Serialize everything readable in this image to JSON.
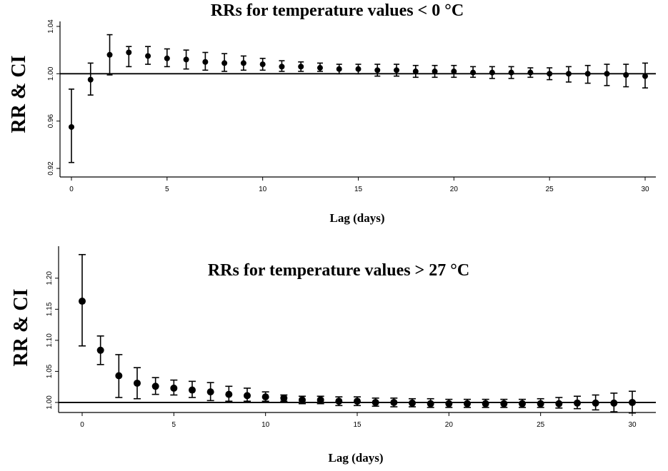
{
  "chart_data": [
    {
      "type": "scatter",
      "title": "RRs for temperature values < 0 °C",
      "xlabel": "Lag (days)",
      "ylabel": "RR & CI",
      "xlim": [
        0,
        30
      ],
      "ylim": [
        0.92,
        1.04
      ],
      "xticks": [
        0,
        5,
        10,
        15,
        20,
        25,
        30
      ],
      "xtick_labels": [
        "0",
        "5",
        "10",
        "15",
        "20",
        "25",
        "30"
      ],
      "yticks": [
        0.92,
        0.96,
        1.0,
        1.04
      ],
      "ytick_labels": [
        "0.92",
        "0.96",
        "1.00",
        "1.04"
      ],
      "reference_line": 1.0,
      "grid": false,
      "x": [
        0,
        1,
        2,
        3,
        4,
        5,
        6,
        7,
        8,
        9,
        10,
        11,
        12,
        13,
        14,
        15,
        16,
        17,
        18,
        19,
        20,
        21,
        22,
        23,
        24,
        25,
        26,
        27,
        28,
        29,
        30
      ],
      "y": [
        0.955,
        0.995,
        1.016,
        1.018,
        1.015,
        1.013,
        1.012,
        1.01,
        1.009,
        1.009,
        1.008,
        1.006,
        1.006,
        1.005,
        1.004,
        1.004,
        1.003,
        1.003,
        1.002,
        1.002,
        1.002,
        1.001,
        1.001,
        1.001,
        1.001,
        1.0,
        1.0,
        1.0,
        1.0,
        0.999,
        0.998
      ],
      "ci_low": [
        0.925,
        0.982,
        0.999,
        1.006,
        1.008,
        1.006,
        1.004,
        1.003,
        1.002,
        1.003,
        1.003,
        1.002,
        1.002,
        1.002,
        1.0,
        1.0,
        0.998,
        0.998,
        0.997,
        0.997,
        0.997,
        0.997,
        0.996,
        0.996,
        0.997,
        0.995,
        0.993,
        0.992,
        0.99,
        0.989,
        0.988
      ],
      "ci_high": [
        0.987,
        1.009,
        1.033,
        1.023,
        1.023,
        1.021,
        1.02,
        1.018,
        1.017,
        1.015,
        1.013,
        1.011,
        1.01,
        1.009,
        1.008,
        1.008,
        1.008,
        1.008,
        1.007,
        1.007,
        1.007,
        1.006,
        1.006,
        1.006,
        1.005,
        1.005,
        1.006,
        1.007,
        1.008,
        1.008,
        1.009
      ]
    },
    {
      "type": "scatter",
      "title": "RRs for temperature values > 27 °C",
      "xlabel": "Lag (days)",
      "ylabel": "RR & CI",
      "xlim": [
        0,
        30
      ],
      "ylim": [
        0.985,
        1.24
      ],
      "xticks": [
        0,
        5,
        10,
        15,
        20,
        25,
        30
      ],
      "xtick_labels": [
        "0",
        "5",
        "10",
        "15",
        "20",
        "25",
        "30"
      ],
      "yticks": [
        1.0,
        1.05,
        1.1,
        1.15,
        1.2
      ],
      "ytick_labels": [
        "1.00",
        "1.05",
        "1.10",
        "1.15",
        "1.20"
      ],
      "reference_line": 1.0,
      "grid": false,
      "x": [
        0,
        1,
        2,
        3,
        4,
        5,
        6,
        7,
        8,
        9,
        10,
        11,
        12,
        13,
        14,
        15,
        16,
        17,
        18,
        19,
        20,
        21,
        22,
        23,
        24,
        25,
        26,
        27,
        28,
        29,
        30
      ],
      "y": [
        1.163,
        1.084,
        1.043,
        1.031,
        1.026,
        1.023,
        1.02,
        1.017,
        1.013,
        1.011,
        1.009,
        1.007,
        1.004,
        1.004,
        1.002,
        1.002,
        1.0,
        1.0,
        0.999,
        0.998,
        0.998,
        0.998,
        0.998,
        0.998,
        0.998,
        0.998,
        0.998,
        0.999,
        0.999,
        0.999,
        1.0
      ],
      "ci_low": [
        1.091,
        1.061,
        1.008,
        1.006,
        1.013,
        1.012,
        1.008,
        1.003,
        1.002,
        1.002,
        1.002,
        1.002,
        0.998,
        0.998,
        0.995,
        0.995,
        0.994,
        0.993,
        0.993,
        0.992,
        0.992,
        0.992,
        0.992,
        0.992,
        0.992,
        0.992,
        0.991,
        0.99,
        0.988,
        0.985,
        0.983
      ],
      "ci_high": [
        1.238,
        1.107,
        1.077,
        1.056,
        1.04,
        1.036,
        1.034,
        1.032,
        1.026,
        1.023,
        1.017,
        1.012,
        1.01,
        1.01,
        1.009,
        1.009,
        1.007,
        1.007,
        1.006,
        1.006,
        1.005,
        1.005,
        1.005,
        1.005,
        1.005,
        1.006,
        1.008,
        1.01,
        1.012,
        1.015,
        1.018
      ]
    }
  ]
}
